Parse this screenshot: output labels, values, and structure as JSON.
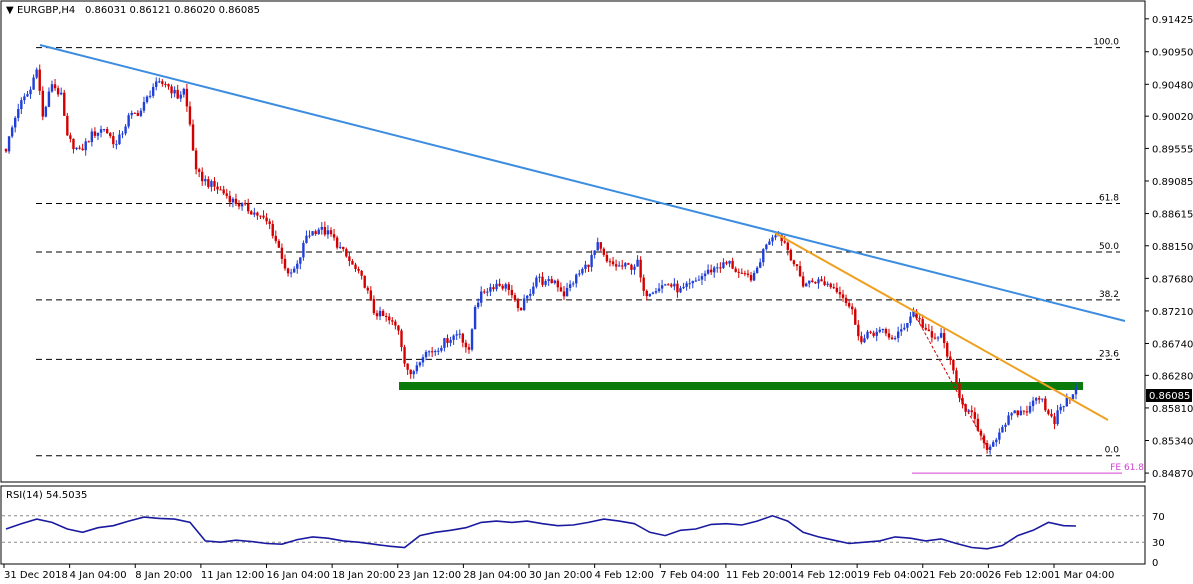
{
  "header": {
    "symbol": "EURGBP,H4",
    "ohlc": "0.86031 0.86121 0.86020 0.86085"
  },
  "rsi_panel": {
    "title": "RSI(14) 54.5035",
    "levels": [
      "70",
      "30",
      "0"
    ]
  },
  "fibonacci": {
    "levels": [
      {
        "label": "100.0",
        "price": 0.9101
      },
      {
        "label": "61.8",
        "price": 0.8876
      },
      {
        "label": "50.0",
        "price": 0.8806
      },
      {
        "label": "38.2",
        "price": 0.8737
      },
      {
        "label": "23.6",
        "price": 0.8651
      },
      {
        "label": "0.0",
        "price": 0.8512
      }
    ],
    "extension": {
      "label": "FE 61.8",
      "price": 0.8487
    }
  },
  "colors": {
    "bull": "#1f3fd8",
    "bear": "#d40000",
    "resistance_long": "#3c8de0",
    "resistance_short": "#f0a020",
    "support_zone": "#0a7a0a",
    "fe_line": "#d040d0",
    "rsi_line": "#1a1aa0",
    "price_box": "#000000"
  },
  "chart_data": {
    "type": "candlestick",
    "symbol": "EURGBP",
    "timeframe": "H4",
    "ylim": [
      0.8477,
      0.9161
    ],
    "y_ticks": [
      "0.91425",
      "0.90950",
      "0.90480",
      "0.90020",
      "0.89555",
      "0.89085",
      "0.88615",
      "0.88150",
      "0.87680",
      "0.87210",
      "0.86740",
      "0.86280",
      "0.85810",
      "0.85340",
      "0.84870"
    ],
    "current_price": "0.86085",
    "x_ticks": [
      "31 Dec 2018",
      "4 Jan 04:00",
      "8 Jan 20:00",
      "11 Jan 12:00",
      "16 Jan 04:00",
      "18 Jan 20:00",
      "23 Jan 12:00",
      "28 Jan 04:00",
      "30 Jan 20:00",
      "4 Feb 12:00",
      "7 Feb 04:00",
      "11 Feb 20:00",
      "14 Feb 12:00",
      "19 Feb 04:00",
      "21 Feb 20:00",
      "26 Feb 12:00",
      "1 Mar 04:00"
    ],
    "close_path": [
      [
        0,
        0.8955
      ],
      [
        4,
        0.9015
      ],
      [
        8,
        0.904
      ],
      [
        10,
        0.9075
      ],
      [
        12,
        0.9
      ],
      [
        15,
        0.905
      ],
      [
        18,
        0.903
      ],
      [
        20,
        0.897
      ],
      [
        24,
        0.895
      ],
      [
        28,
        0.8975
      ],
      [
        32,
        0.8985
      ],
      [
        36,
        0.896
      ],
      [
        40,
        0.9
      ],
      [
        44,
        0.901
      ],
      [
        48,
        0.9045
      ],
      [
        52,
        0.905
      ],
      [
        56,
        0.903
      ],
      [
        58,
        0.904
      ],
      [
        60,
        0.899
      ],
      [
        62,
        0.892
      ],
      [
        66,
        0.8905
      ],
      [
        70,
        0.8895
      ],
      [
        74,
        0.888
      ],
      [
        78,
        0.887
      ],
      [
        82,
        0.886
      ],
      [
        86,
        0.8845
      ],
      [
        90,
        0.88
      ],
      [
        92,
        0.877
      ],
      [
        95,
        0.8785
      ],
      [
        98,
        0.883
      ],
      [
        102,
        0.884
      ],
      [
        106,
        0.883
      ],
      [
        110,
        0.8805
      ],
      [
        114,
        0.878
      ],
      [
        117,
        0.876
      ],
      [
        120,
        0.872
      ],
      [
        124,
        0.871
      ],
      [
        128,
        0.8695
      ],
      [
        130,
        0.865
      ],
      [
        132,
        0.8625
      ],
      [
        134,
        0.8645
      ],
      [
        136,
        0.866
      ],
      [
        140,
        0.8665
      ],
      [
        144,
        0.868
      ],
      [
        148,
        0.869
      ],
      [
        151,
        0.866
      ],
      [
        153,
        0.873
      ],
      [
        156,
        0.875
      ],
      [
        160,
        0.876
      ],
      [
        164,
        0.8755
      ],
      [
        167,
        0.872
      ],
      [
        170,
        0.874
      ],
      [
        173,
        0.877
      ],
      [
        176,
        0.876
      ],
      [
        179,
        0.8765
      ],
      [
        182,
        0.8745
      ],
      [
        186,
        0.877
      ],
      [
        190,
        0.879
      ],
      [
        193,
        0.8815
      ],
      [
        196,
        0.879
      ],
      [
        200,
        0.8785
      ],
      [
        204,
        0.8785
      ],
      [
        206,
        0.879
      ],
      [
        208,
        0.8745
      ],
      [
        212,
        0.8755
      ],
      [
        216,
        0.876
      ],
      [
        220,
        0.875
      ],
      [
        224,
        0.876
      ],
      [
        228,
        0.8775
      ],
      [
        232,
        0.8785
      ],
      [
        236,
        0.879
      ],
      [
        240,
        0.877
      ],
      [
        244,
        0.877
      ],
      [
        248,
        0.882
      ],
      [
        251,
        0.8835
      ],
      [
        254,
        0.882
      ],
      [
        257,
        0.879
      ],
      [
        260,
        0.876
      ],
      [
        264,
        0.8765
      ],
      [
        268,
        0.876
      ],
      [
        272,
        0.875
      ],
      [
        276,
        0.872
      ],
      [
        279,
        0.8675
      ],
      [
        282,
        0.869
      ],
      [
        286,
        0.869
      ],
      [
        290,
        0.868
      ],
      [
        293,
        0.87
      ],
      [
        296,
        0.872
      ],
      [
        299,
        0.87
      ],
      [
        302,
        0.868
      ],
      [
        305,
        0.8685
      ],
      [
        307,
        0.866
      ],
      [
        309,
        0.863
      ],
      [
        311,
        0.86
      ],
      [
        313,
        0.858
      ],
      [
        315,
        0.857
      ],
      [
        317,
        0.855
      ],
      [
        319,
        0.8525
      ],
      [
        321,
        0.8525
      ],
      [
        323,
        0.854
      ],
      [
        325,
        0.8555
      ],
      [
        328,
        0.857
      ],
      [
        331,
        0.8575
      ],
      [
        334,
        0.858
      ],
      [
        336,
        0.86
      ],
      [
        338,
        0.8595
      ],
      [
        340,
        0.857
      ],
      [
        342,
        0.856
      ],
      [
        344,
        0.8585
      ],
      [
        346,
        0.859
      ],
      [
        348,
        0.8605
      ],
      [
        349,
        0.86085
      ]
    ],
    "rsi": {
      "name": "RSI(14)",
      "value": "54.5035",
      "ylim": [
        0,
        100
      ],
      "levels": [
        70,
        30
      ],
      "path": [
        [
          0,
          50
        ],
        [
          5,
          58
        ],
        [
          10,
          65
        ],
        [
          15,
          60
        ],
        [
          20,
          50
        ],
        [
          25,
          45
        ],
        [
          30,
          52
        ],
        [
          35,
          55
        ],
        [
          40,
          62
        ],
        [
          45,
          68
        ],
        [
          50,
          66
        ],
        [
          55,
          65
        ],
        [
          60,
          60
        ],
        [
          65,
          32
        ],
        [
          70,
          30
        ],
        [
          75,
          33
        ],
        [
          80,
          31
        ],
        [
          85,
          28
        ],
        [
          90,
          27
        ],
        [
          95,
          34
        ],
        [
          100,
          38
        ],
        [
          105,
          36
        ],
        [
          110,
          32
        ],
        [
          115,
          30
        ],
        [
          120,
          27
        ],
        [
          125,
          24
        ],
        [
          130,
          22
        ],
        [
          135,
          40
        ],
        [
          140,
          45
        ],
        [
          145,
          48
        ],
        [
          150,
          52
        ],
        [
          155,
          60
        ],
        [
          160,
          62
        ],
        [
          165,
          60
        ],
        [
          170,
          62
        ],
        [
          175,
          58
        ],
        [
          180,
          55
        ],
        [
          185,
          56
        ],
        [
          190,
          60
        ],
        [
          195,
          65
        ],
        [
          200,
          62
        ],
        [
          205,
          58
        ],
        [
          210,
          45
        ],
        [
          215,
          40
        ],
        [
          220,
          48
        ],
        [
          225,
          50
        ],
        [
          230,
          57
        ],
        [
          235,
          58
        ],
        [
          240,
          56
        ],
        [
          245,
          62
        ],
        [
          250,
          70
        ],
        [
          255,
          62
        ],
        [
          260,
          45
        ],
        [
          265,
          38
        ],
        [
          270,
          33
        ],
        [
          275,
          28
        ],
        [
          280,
          30
        ],
        [
          285,
          32
        ],
        [
          290,
          38
        ],
        [
          295,
          36
        ],
        [
          300,
          32
        ],
        [
          305,
          35
        ],
        [
          310,
          28
        ],
        [
          315,
          22
        ],
        [
          320,
          20
        ],
        [
          325,
          25
        ],
        [
          330,
          40
        ],
        [
          335,
          48
        ],
        [
          340,
          60
        ],
        [
          345,
          55
        ],
        [
          349,
          54.5
        ]
      ]
    }
  }
}
